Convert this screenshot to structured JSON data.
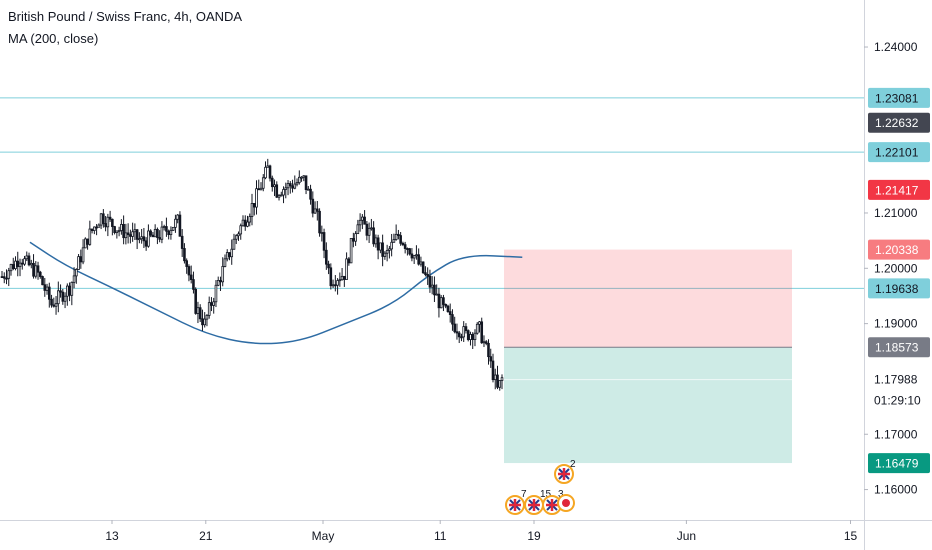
{
  "header": {
    "title": "British Pound / Swiss Franc, 4h, OANDA",
    "indicator": "MA (200, close)"
  },
  "chart_data": {
    "type": "candlestick",
    "symbol": "GBPCHF",
    "ylim": [
      1.1545,
      1.2485
    ],
    "y_ticks": [
      "1.24000",
      "1.21000",
      "1.20000",
      "1.19000",
      "1.17000",
      "1.16000"
    ],
    "x_ticks": [
      "13",
      "21",
      "May",
      "11",
      "19",
      "Jun",
      "15"
    ],
    "horizontal_lines": [
      1.23081,
      1.22101,
      1.19638
    ],
    "price_badges": [
      {
        "label": "1.23081",
        "value": 1.23081,
        "color": "#7fcfdb",
        "text_color": "#131722"
      },
      {
        "label": "1.22632",
        "value": 1.22632,
        "color": "#434651",
        "text_color": "#ffffff"
      },
      {
        "label": "1.22101",
        "value": 1.22101,
        "color": "#7fcfdb",
        "text_color": "#131722"
      },
      {
        "label": "1.21417",
        "value": 1.21417,
        "color": "#f23645",
        "text_color": "#ffffff"
      },
      {
        "label": "1.20338",
        "value": 1.20338,
        "color": "#f77c80",
        "text_color": "#ffffff"
      },
      {
        "label": "1.19638",
        "value": 1.19638,
        "color": "#7fcfdb",
        "text_color": "#131722"
      },
      {
        "label": "1.18573",
        "value": 1.18573,
        "color": "#787b86",
        "text_color": "#ffffff"
      },
      {
        "label": "1.16479",
        "value": 1.16479,
        "color": "#089981",
        "text_color": "#ffffff"
      }
    ],
    "last_price": {
      "label": "1.17988",
      "value": 1.17988,
      "countdown": "01:29:10"
    },
    "position": {
      "entry": 1.18573,
      "stop": 1.20338,
      "target": 1.16479
    },
    "moving_average": {
      "name": "MA (200, close)",
      "color": "#2e6ca4",
      "points": [
        {
          "x": "Apr 6",
          "y": 1.2047
        },
        {
          "x": "Apr 9",
          "y": 1.2005
        },
        {
          "x": "Apr 13",
          "y": 1.1965
        },
        {
          "x": "Apr 17",
          "y": 1.1923
        },
        {
          "x": "Apr 21",
          "y": 1.1881
        },
        {
          "x": "Apr 25",
          "y": 1.1862
        },
        {
          "x": "Apr 29",
          "y": 1.1867
        },
        {
          "x": "May 3",
          "y": 1.1901
        },
        {
          "x": "May 7",
          "y": 1.1935
        },
        {
          "x": "May 10",
          "y": 1.1988
        },
        {
          "x": "May 13",
          "y": 1.2025
        },
        {
          "x": "May 18",
          "y": 1.202
        }
      ]
    },
    "candles_note": "approximate 4h OHLC path",
    "candles": {
      "key_path": [
        [
          0,
          1.1985
        ],
        [
          8,
          1.202
        ],
        [
          16,
          1.199
        ],
        [
          22,
          1.1935
        ],
        [
          30,
          1.1965
        ],
        [
          38,
          1.2055
        ],
        [
          44,
          1.2095
        ],
        [
          52,
          1.207
        ],
        [
          62,
          1.205
        ],
        [
          70,
          1.206
        ],
        [
          78,
          1.2085
        ],
        [
          86,
          1.193
        ],
        [
          90,
          1.19
        ],
        [
          96,
          1.1975
        ],
        [
          104,
          1.206
        ],
        [
          112,
          1.212
        ],
        [
          118,
          1.218
        ],
        [
          122,
          1.214
        ],
        [
          128,
          1.215
        ],
        [
          134,
          1.216
        ],
        [
          140,
          1.209
        ],
        [
          146,
          1.198
        ],
        [
          152,
          1.199
        ],
        [
          158,
          1.209
        ],
        [
          164,
          1.206
        ],
        [
          170,
          1.202
        ],
        [
          176,
          1.206
        ],
        [
          182,
          1.203
        ],
        [
          188,
          1.1985
        ],
        [
          194,
          1.194
        ],
        [
          200,
          1.19
        ],
        [
          206,
          1.188
        ],
        [
          212,
          1.189
        ],
        [
          216,
          1.184
        ],
        [
          220,
          1.178
        ],
        [
          222,
          1.18
        ]
      ],
      "count": 223
    },
    "x_axis_start": "Apr 6",
    "x_axis_end": "Jun 17"
  },
  "events": {
    "upper": {
      "count": "2"
    },
    "lower": [
      {
        "count": "7"
      },
      {
        "count": "15"
      },
      {
        "count": "3"
      }
    ]
  },
  "colors": {
    "candle": "#131722",
    "hline": "#7fcfdb",
    "stop_zone": "rgba(242,54,69,0.18)",
    "target_zone": "rgba(8,153,129,0.20)"
  }
}
